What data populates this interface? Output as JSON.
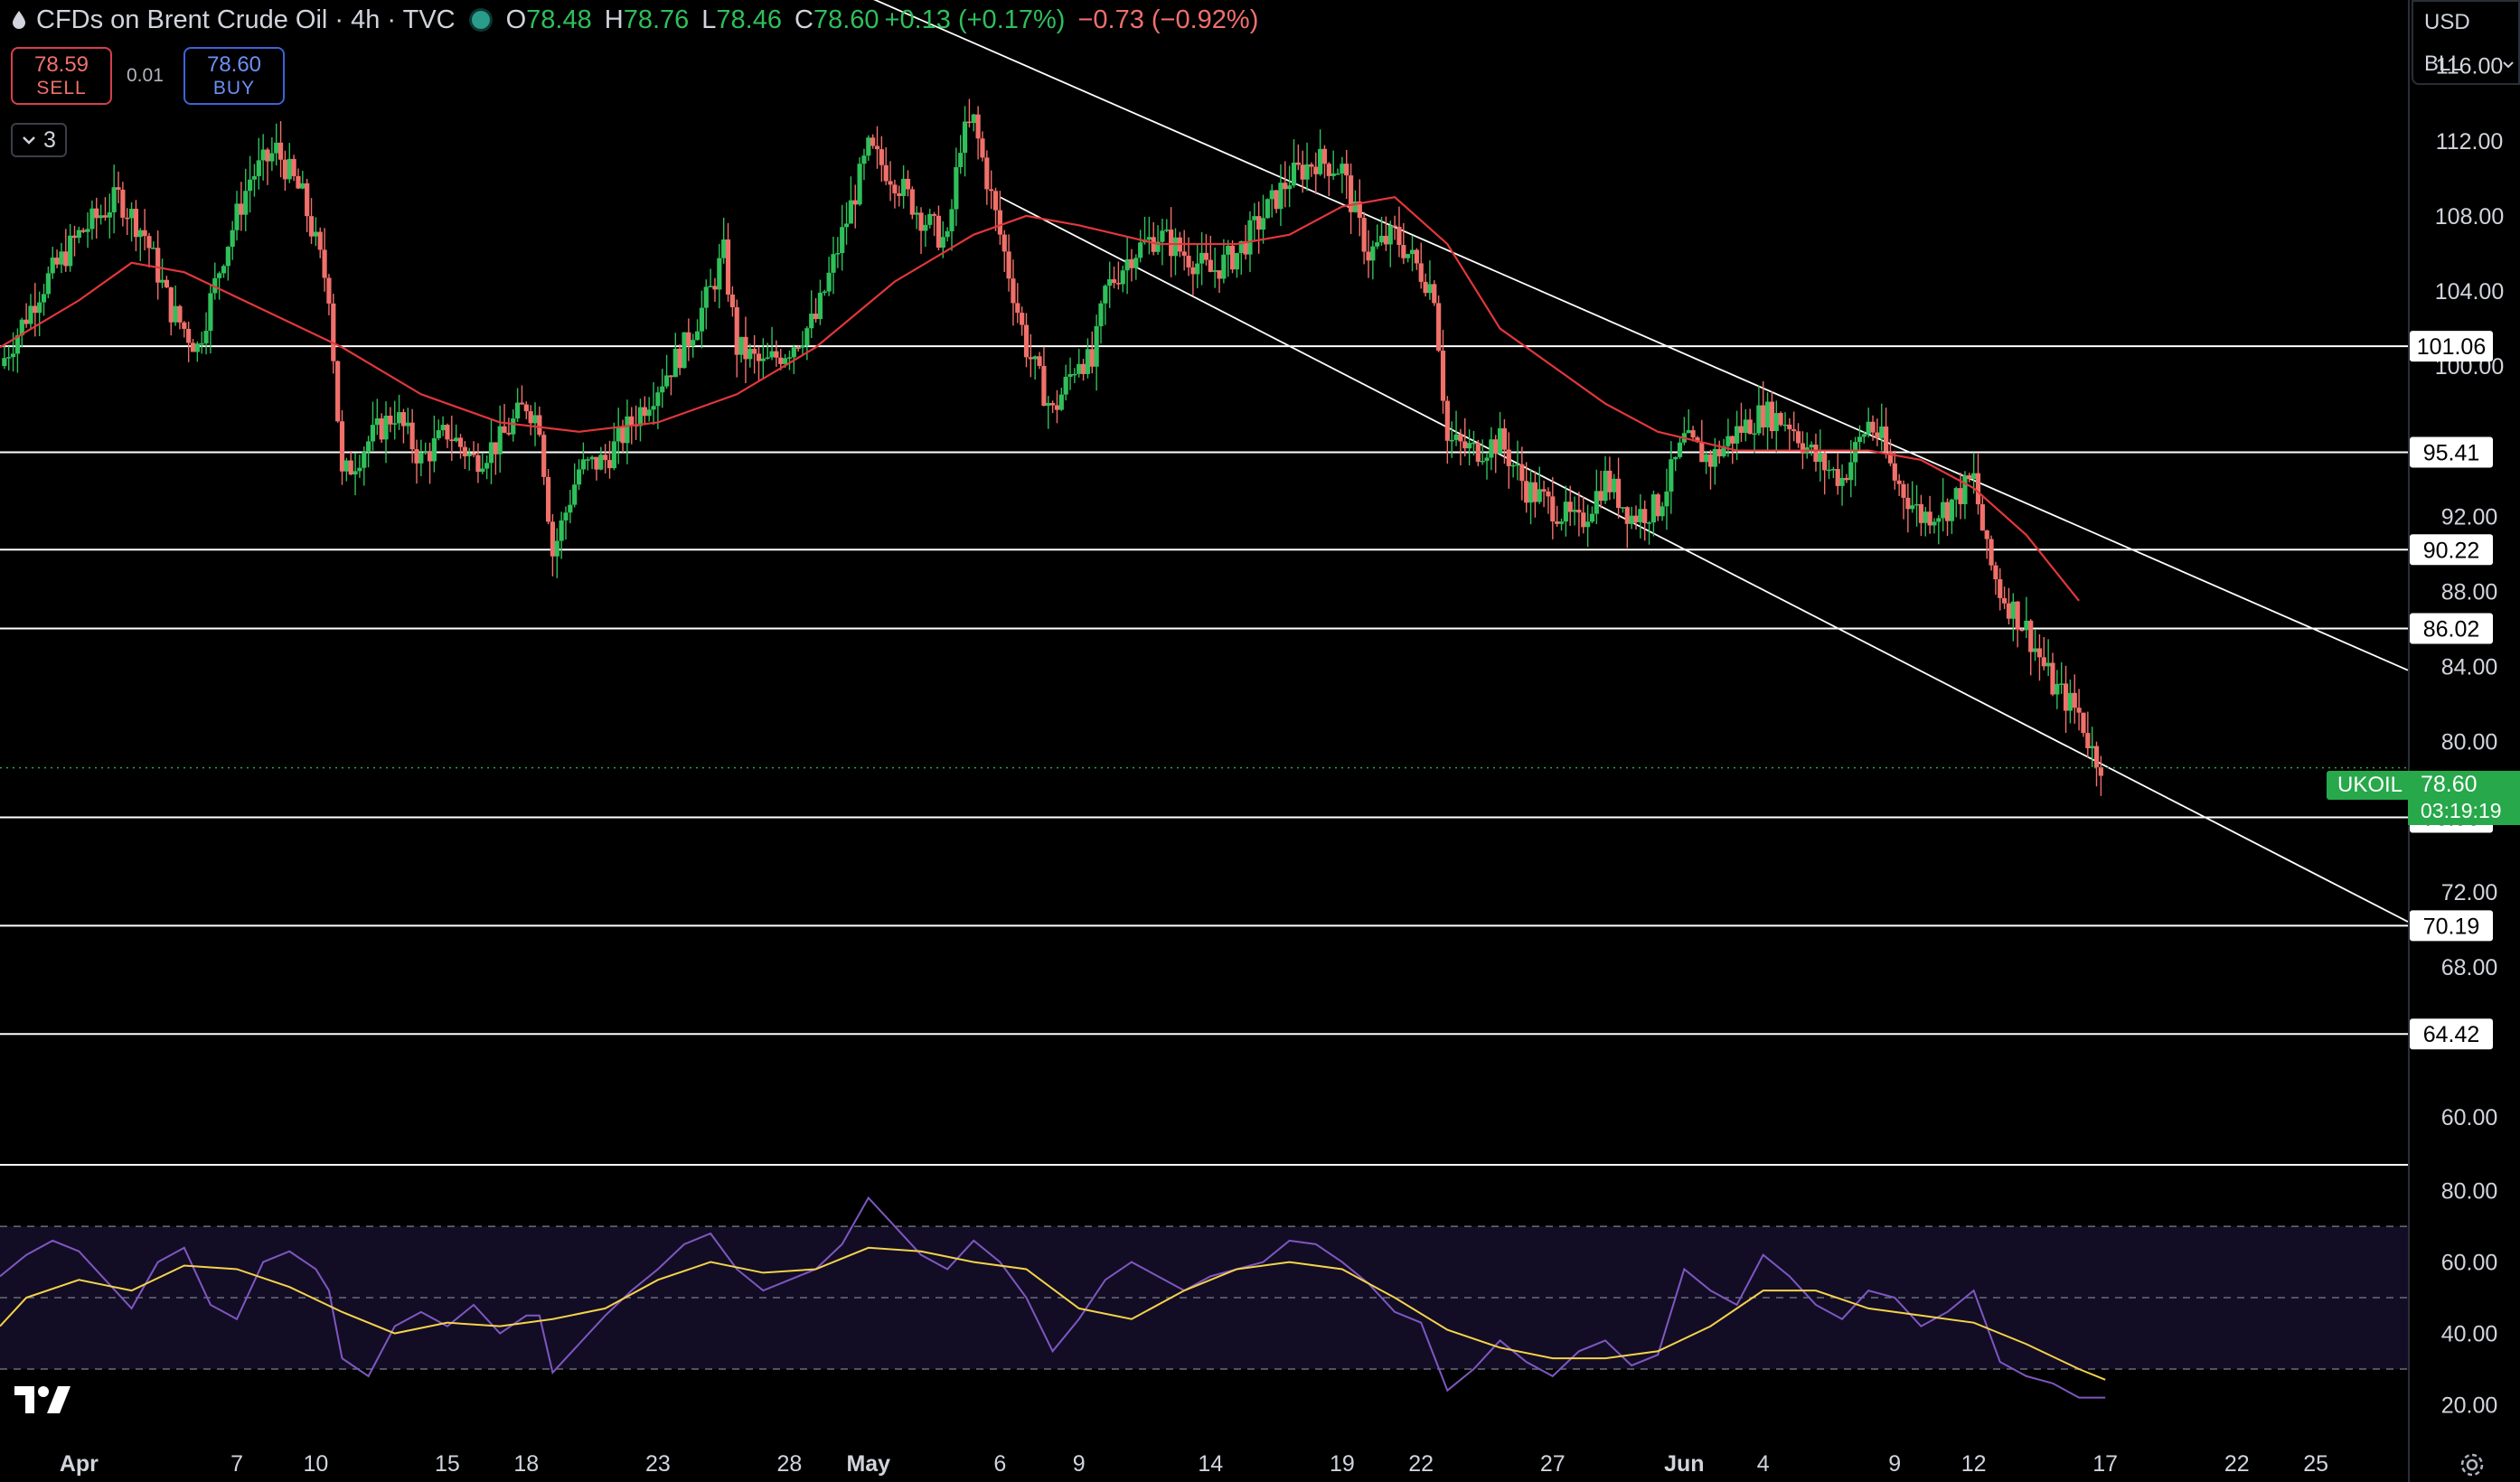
{
  "header": {
    "title": "CFDs on Brent Crude Oil · 4h · TVC",
    "open_label": "O",
    "open": "78.48",
    "high_label": "H",
    "high": "78.76",
    "low_label": "L",
    "low": "78.46",
    "close_label": "C",
    "close": "78.60",
    "change": "+0.13 (+0.17%)",
    "change2": "−0.73 (−0.92%)"
  },
  "trade": {
    "sell_price": "78.59",
    "sell_label": "SELL",
    "spread": "0.01",
    "buy_price": "78.60",
    "buy_label": "BUY"
  },
  "indicators_collapse": {
    "count": "3"
  },
  "axis_panel": {
    "currency": "USD",
    "unit": "BLL"
  },
  "symbol_tag": {
    "symbol": "UKOIL",
    "price": "78.60",
    "countdown": "03:19:19"
  },
  "colors": {
    "up": "#2fbf5b",
    "down": "#f0706a",
    "ma": "#e2373a",
    "rsi": "#7e57c2",
    "rsi_ma": "#f5d24b",
    "accent": "#27a84a"
  },
  "icons": [
    "drop-icon",
    "live-status-icon",
    "chevron-down-icon",
    "tradingview-logo",
    "gear-icon"
  ],
  "chart_data": [
    {
      "type": "candlestick",
      "symbol": "UKOIL",
      "timeframe": "4h",
      "y_axis_ticks": [
        116,
        112,
        108,
        104,
        100,
        96,
        92,
        88,
        84,
        80,
        76,
        72,
        68,
        64,
        60
      ],
      "y_axis_ticks_shown": [
        "116.00",
        "112.00",
        "108.00",
        "104.00",
        "100.00",
        "92.00",
        "88.00",
        "84.00",
        "80.00",
        "72.00",
        "68.00",
        "60.00"
      ],
      "ylim": [
        57.5,
        119.5
      ],
      "x_axis_labels": [
        "Apr",
        "7",
        "10",
        "15",
        "18",
        "23",
        "28",
        "May",
        "6",
        "9",
        "14",
        "19",
        "22",
        "27",
        "Jun",
        "4",
        "9",
        "12",
        "17",
        "22",
        "25"
      ],
      "x_label_positions_days": [
        0,
        6,
        9,
        14,
        17,
        22,
        27,
        30,
        35,
        38,
        43,
        48,
        51,
        56,
        61,
        64,
        69,
        72,
        77,
        82,
        85
      ],
      "x_range_days": [
        -3,
        88.5
      ],
      "last_data_day": 77,
      "closes_anchor": [
        [
          -3,
          100
        ],
        [
          -1.5,
          104
        ],
        [
          0,
          107
        ],
        [
          1.5,
          109
        ],
        [
          2.5,
          107
        ],
        [
          3.5,
          103
        ],
        [
          4.5,
          101
        ],
        [
          5.5,
          106
        ],
        [
          6.5,
          110
        ],
        [
          7.5,
          111.5
        ],
        [
          8.5,
          109
        ],
        [
          9.5,
          104
        ],
        [
          10,
          94
        ],
        [
          11,
          96
        ],
        [
          12,
          97.5
        ],
        [
          13,
          95
        ],
        [
          14,
          96.5
        ],
        [
          15,
          95
        ],
        [
          16,
          96
        ],
        [
          17,
          98
        ],
        [
          17.5,
          97
        ],
        [
          18,
          90
        ],
        [
          19,
          94.5
        ],
        [
          20,
          95
        ],
        [
          21,
          97
        ],
        [
          22,
          99
        ],
        [
          23,
          101
        ],
        [
          24,
          104
        ],
        [
          24.5,
          106
        ],
        [
          25,
          101
        ],
        [
          26,
          100
        ],
        [
          27,
          101
        ],
        [
          28,
          102.5
        ],
        [
          29,
          107
        ],
        [
          30,
          111.5
        ],
        [
          31,
          110
        ],
        [
          32,
          108
        ],
        [
          33,
          106.5
        ],
        [
          33.5,
          112
        ],
        [
          34,
          113
        ],
        [
          34.5,
          110
        ],
        [
          35,
          107
        ],
        [
          36,
          101
        ],
        [
          37,
          97.5
        ],
        [
          38,
          100.5
        ],
        [
          38.5,
          100
        ],
        [
          39,
          104
        ],
        [
          40,
          106
        ],
        [
          41,
          107
        ],
        [
          42,
          106
        ],
        [
          43,
          105
        ],
        [
          44,
          106
        ],
        [
          45,
          108
        ],
        [
          46,
          110
        ],
        [
          47,
          111
        ],
        [
          48,
          110.5
        ],
        [
          48.5,
          108
        ],
        [
          49,
          106
        ],
        [
          50,
          107
        ],
        [
          51,
          105
        ],
        [
          51.5,
          104
        ],
        [
          52,
          96
        ],
        [
          53,
          95.5
        ],
        [
          54,
          96
        ],
        [
          55,
          93.5
        ],
        [
          56,
          92.5
        ],
        [
          57,
          91.5
        ],
        [
          58,
          94
        ],
        [
          59,
          92
        ],
        [
          60,
          92.5
        ],
        [
          61,
          96
        ],
        [
          62,
          95
        ],
        [
          63,
          96.5
        ],
        [
          64,
          97.5
        ],
        [
          65,
          97
        ],
        [
          66,
          95
        ],
        [
          67,
          94
        ],
        [
          68,
          97
        ],
        [
          68.5,
          96
        ],
        [
          69,
          94
        ],
        [
          70,
          92
        ],
        [
          71,
          92.5
        ],
        [
          72,
          94
        ],
        [
          72.5,
          90
        ],
        [
          73,
          88
        ],
        [
          74,
          86
        ],
        [
          75,
          83
        ],
        [
          76,
          81.5
        ],
        [
          76.5,
          79.5
        ],
        [
          77,
          78.6
        ]
      ],
      "moving_average": {
        "color": "#e2373a",
        "points": [
          [
            -3,
            101
          ],
          [
            0,
            103.5
          ],
          [
            2,
            105.5
          ],
          [
            4,
            105
          ],
          [
            7,
            103
          ],
          [
            10,
            101
          ],
          [
            13,
            98.5
          ],
          [
            16,
            97
          ],
          [
            19,
            96.5
          ],
          [
            22,
            97
          ],
          [
            25,
            98.5
          ],
          [
            28,
            101
          ],
          [
            31,
            104.5
          ],
          [
            34,
            107
          ],
          [
            36,
            108
          ],
          [
            38,
            107.5
          ],
          [
            41,
            106.5
          ],
          [
            44,
            106.5
          ],
          [
            46,
            107
          ],
          [
            48,
            108.5
          ],
          [
            50,
            109
          ],
          [
            52,
            106.5
          ],
          [
            54,
            102
          ],
          [
            56,
            100
          ],
          [
            58,
            98
          ],
          [
            60,
            96.5
          ],
          [
            63,
            95.5
          ],
          [
            66,
            95.5
          ],
          [
            68,
            95.5
          ],
          [
            70,
            95
          ],
          [
            72,
            93.5
          ],
          [
            74,
            91
          ],
          [
            76,
            87.5
          ]
        ]
      },
      "horizontal_levels": [
        101.06,
        95.41,
        90.22,
        86.02,
        75.96,
        70.19,
        64.42
      ],
      "trend_lines": [
        {
          "from": [
            27,
            121.5
          ],
          "to": [
            88.5,
            83.8
          ]
        },
        {
          "from": [
            35,
            109
          ],
          "to": [
            88.5,
            70.4
          ]
        }
      ],
      "last_price": 78.6
    },
    {
      "type": "line",
      "title": "RSI",
      "y_axis_ticks": [
        80,
        60,
        40,
        20
      ],
      "y_axis_ticks_shown": [
        "80.00",
        "60.00",
        "40.00",
        "20.00"
      ],
      "ylim": [
        11,
        87
      ],
      "band": [
        30,
        70
      ],
      "midline": 50,
      "series": [
        {
          "color": "#7e57c2",
          "points": [
            [
              -3,
              56
            ],
            [
              -2,
              62
            ],
            [
              -1,
              66
            ],
            [
              0,
              63
            ],
            [
              1,
              55
            ],
            [
              2,
              47
            ],
            [
              3,
              60
            ],
            [
              4,
              64
            ],
            [
              5,
              48
            ],
            [
              6,
              44
            ],
            [
              7,
              60
            ],
            [
              8,
              63
            ],
            [
              9,
              58
            ],
            [
              9.5,
              52
            ],
            [
              10,
              33
            ],
            [
              11,
              28
            ],
            [
              12,
              42
            ],
            [
              13,
              46
            ],
            [
              14,
              42
            ],
            [
              15,
              48
            ],
            [
              16,
              40
            ],
            [
              17,
              45
            ],
            [
              17.5,
              45
            ],
            [
              18,
              29
            ],
            [
              19,
              37
            ],
            [
              20,
              45
            ],
            [
              21,
              52
            ],
            [
              22,
              58
            ],
            [
              23,
              65
            ],
            [
              24,
              68
            ],
            [
              25,
              58
            ],
            [
              26,
              52
            ],
            [
              27,
              55
            ],
            [
              28,
              58
            ],
            [
              29,
              65
            ],
            [
              30,
              78
            ],
            [
              31,
              70
            ],
            [
              32,
              62
            ],
            [
              33,
              58
            ],
            [
              34,
              66
            ],
            [
              35,
              60
            ],
            [
              36,
              50
            ],
            [
              37,
              35
            ],
            [
              38,
              44
            ],
            [
              39,
              55
            ],
            [
              40,
              60
            ],
            [
              41,
              56
            ],
            [
              42,
              52
            ],
            [
              43,
              56
            ],
            [
              44,
              58
            ],
            [
              45,
              60
            ],
            [
              46,
              66
            ],
            [
              47,
              65
            ],
            [
              48,
              60
            ],
            [
              49,
              54
            ],
            [
              50,
              46
            ],
            [
              51,
              43
            ],
            [
              52,
              24
            ],
            [
              53,
              30
            ],
            [
              54,
              38
            ],
            [
              55,
              32
            ],
            [
              56,
              28
            ],
            [
              57,
              35
            ],
            [
              58,
              38
            ],
            [
              59,
              31
            ],
            [
              60,
              34
            ],
            [
              61,
              58
            ],
            [
              62,
              52
            ],
            [
              63,
              48
            ],
            [
              64,
              62
            ],
            [
              65,
              56
            ],
            [
              66,
              48
            ],
            [
              67,
              44
            ],
            [
              68,
              52
            ],
            [
              69,
              50
            ],
            [
              70,
              42
            ],
            [
              71,
              46
            ],
            [
              72,
              52
            ],
            [
              73,
              32
            ],
            [
              74,
              28
            ],
            [
              75,
              26
            ],
            [
              76,
              22
            ],
            [
              77,
              22
            ]
          ]
        },
        {
          "color": "#f5d24b",
          "points": [
            [
              -3,
              42
            ],
            [
              -2,
              50
            ],
            [
              0,
              55
            ],
            [
              2,
              52
            ],
            [
              4,
              59
            ],
            [
              6,
              58
            ],
            [
              8,
              53
            ],
            [
              10,
              46
            ],
            [
              12,
              40
            ],
            [
              14,
              43
            ],
            [
              16,
              42
            ],
            [
              18,
              44
            ],
            [
              20,
              47
            ],
            [
              22,
              55
            ],
            [
              24,
              60
            ],
            [
              26,
              57
            ],
            [
              28,
              58
            ],
            [
              30,
              64
            ],
            [
              32,
              63
            ],
            [
              34,
              60
            ],
            [
              36,
              58
            ],
            [
              38,
              47
            ],
            [
              40,
              44
            ],
            [
              42,
              52
            ],
            [
              44,
              58
            ],
            [
              46,
              60
            ],
            [
              48,
              58
            ],
            [
              50,
              50
            ],
            [
              52,
              41
            ],
            [
              54,
              36
            ],
            [
              56,
              33
            ],
            [
              58,
              33
            ],
            [
              60,
              35
            ],
            [
              62,
              42
            ],
            [
              64,
              52
            ],
            [
              66,
              52
            ],
            [
              68,
              47
            ],
            [
              70,
              45
            ],
            [
              72,
              43
            ],
            [
              74,
              37
            ],
            [
              76,
              30
            ],
            [
              77,
              27
            ]
          ]
        }
      ]
    }
  ]
}
